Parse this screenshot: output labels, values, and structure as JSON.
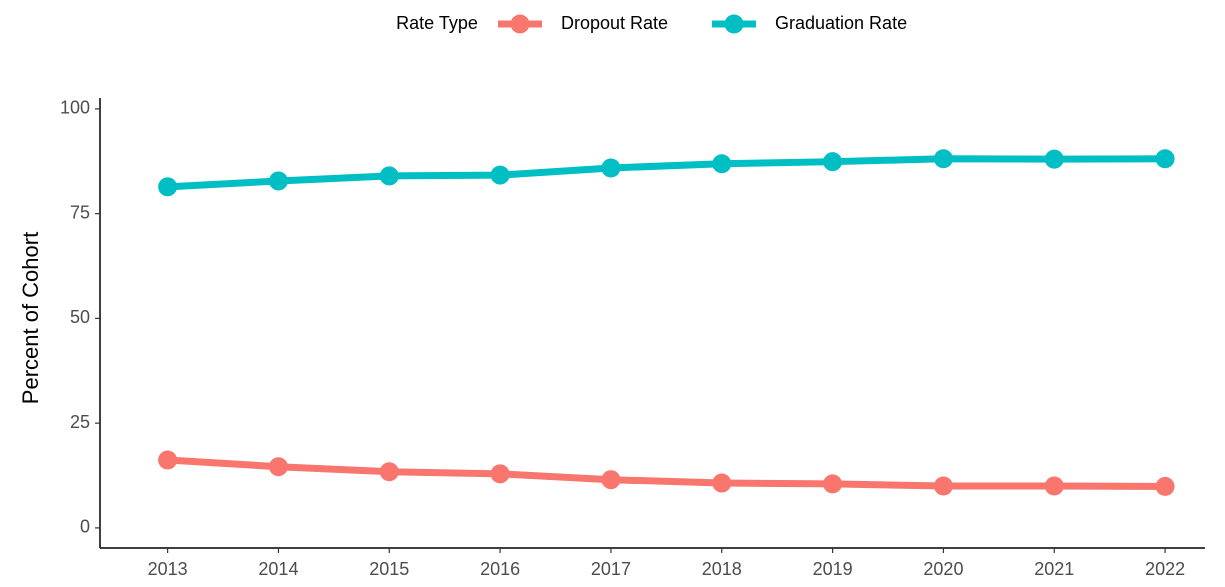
{
  "chart_data": {
    "type": "line",
    "y_label": "Percent of Cohort",
    "legend_title": "Rate Type",
    "legend": "top",
    "x": [
      2013,
      2014,
      2015,
      2016,
      2017,
      2018,
      2019,
      2020,
      2021,
      2022
    ],
    "xlim": [
      2012.39,
      2022.36
    ],
    "xticks": [
      2013,
      2014,
      2015,
      2016,
      2017,
      2018,
      2019,
      2020,
      2021,
      2022
    ],
    "ylim": [
      -4.8,
      102.6
    ],
    "yticks": [
      0,
      25,
      50,
      75,
      100
    ],
    "grid": false,
    "series": [
      {
        "name": "Dropout Rate",
        "color": "#F8766D",
        "values": [
          16.2,
          14.6,
          13.4,
          12.9,
          11.5,
          10.7,
          10.5,
          10.0,
          10.0,
          9.9
        ]
      },
      {
        "name": "Graduation Rate",
        "color": "#00BFC4",
        "values": [
          81.4,
          82.8,
          84.0,
          84.2,
          85.9,
          86.9,
          87.4,
          88.1,
          88.0,
          88.1
        ]
      }
    ]
  }
}
